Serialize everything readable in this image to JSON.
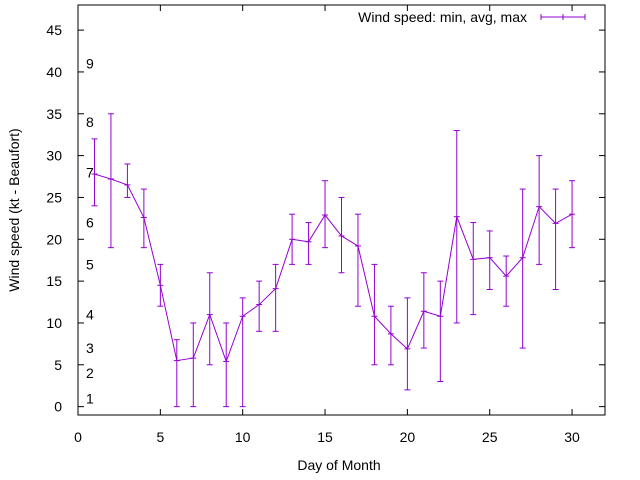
{
  "chart_data": {
    "type": "line",
    "title": "",
    "xlabel": "Day of Month",
    "ylabel": "Wind speed (kt - Beaufort)",
    "xlim": [
      0,
      32
    ],
    "ylim": [
      -1,
      48
    ],
    "xticks": [
      0,
      5,
      10,
      15,
      20,
      25,
      30
    ],
    "yticks": [
      0,
      5,
      10,
      15,
      20,
      25,
      30,
      35,
      40,
      45
    ],
    "grid": false,
    "legend": {
      "position": "top-right",
      "label": "Wind speed: min, avg, max"
    },
    "series_color": "#9400d3",
    "beaufort_labels": [
      {
        "label": "1",
        "y": 1
      },
      {
        "label": "2",
        "y": 4
      },
      {
        "label": "3",
        "y": 7
      },
      {
        "label": "4",
        "y": 11
      },
      {
        "label": "5",
        "y": 17
      },
      {
        "label": "6",
        "y": 22
      },
      {
        "label": "7",
        "y": 28
      },
      {
        "label": "8",
        "y": 34
      },
      {
        "label": "9",
        "y": 41
      }
    ],
    "series": [
      {
        "name": "Wind speed: min, avg, max",
        "x": [
          1,
          2,
          3,
          4,
          5,
          6,
          7,
          8,
          9,
          10,
          11,
          12,
          13,
          14,
          15,
          16,
          17,
          18,
          19,
          20,
          21,
          22,
          23,
          24,
          25,
          26,
          27,
          28,
          29,
          30
        ],
        "avg": [
          27.8,
          27.2,
          26.5,
          22.6,
          14.5,
          5.5,
          5.8,
          11.0,
          5.4,
          10.8,
          12.2,
          14.1,
          20.0,
          19.7,
          22.9,
          20.4,
          19.2,
          10.8,
          8.7,
          6.9,
          11.4,
          10.8,
          22.7,
          17.6,
          17.8,
          15.6,
          17.8,
          23.9,
          21.9,
          23.0
        ],
        "min": [
          24,
          19,
          25,
          19,
          12,
          0,
          0,
          5,
          0,
          0,
          9,
          9,
          17,
          17,
          19,
          16,
          12,
          5,
          5,
          2,
          7,
          3,
          10,
          11,
          14,
          12,
          7,
          17,
          14,
          19
        ],
        "max": [
          32,
          35,
          29,
          26,
          17,
          8,
          10,
          16,
          10,
          13,
          15,
          17,
          23,
          22,
          27,
          25,
          23,
          17,
          12,
          13,
          16,
          15,
          33,
          22,
          21,
          18,
          26,
          30,
          26,
          27
        ]
      }
    ]
  }
}
